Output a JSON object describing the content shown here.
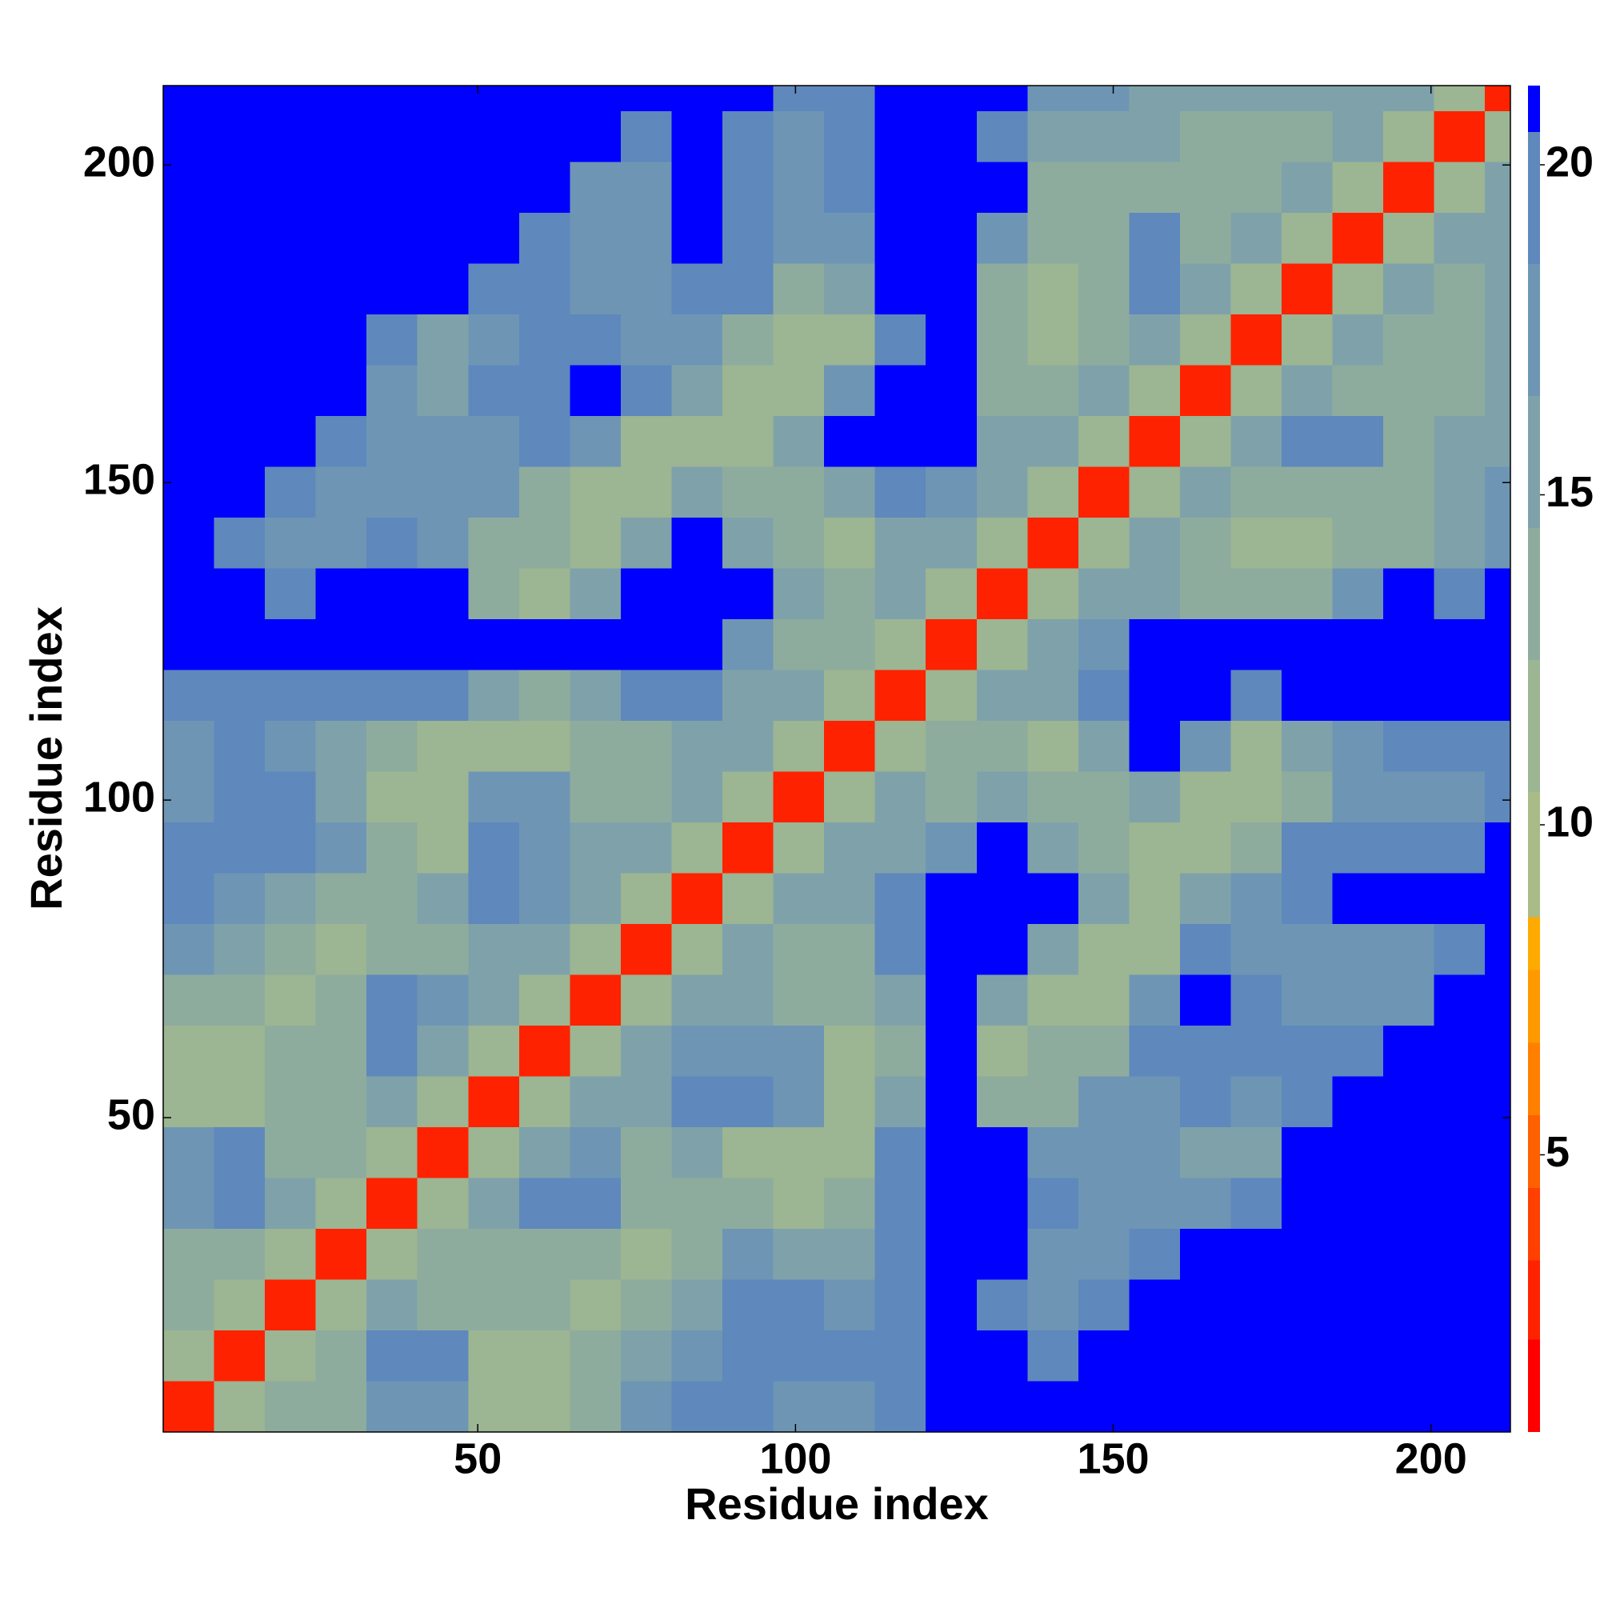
{
  "chart_data": {
    "type": "heatmap",
    "xlabel": "Residue index",
    "ylabel": "Residue index",
    "bins": [
      0.5,
      8.5,
      16.5,
      24.5,
      32.5,
      40.5,
      48.5,
      56.5,
      64.5,
      72.5,
      80.5,
      88.5,
      96.5,
      104.5,
      112.5,
      120.5,
      128.5,
      136.5,
      144.5,
      152.5,
      160.5,
      168.5,
      176.5,
      184.5,
      192.5,
      200.5,
      208.5,
      212.5
    ],
    "xlim": [
      0.5,
      212.5
    ],
    "ylim": [
      0.5,
      212.5
    ],
    "xticks": [
      50,
      100,
      150,
      200
    ],
    "yticks": [
      50,
      100,
      150,
      200
    ],
    "colorbar": {
      "bounds": [
        0.8,
        2.2,
        3.4,
        4.5,
        5.6,
        6.7,
        7.8,
        8.6,
        10.5,
        12.5,
        14.5,
        16.5,
        18.5,
        20.5,
        21.2
      ],
      "colors": [
        "#ff0000",
        "#ff2200",
        "#ff4000",
        "#ff6000",
        "#ff8000",
        "#ff9900",
        "#ffaa00",
        "#a9bb86",
        "#9cb592",
        "#8eac9e",
        "#7fa2aa",
        "#6e96b4",
        "#5f88bc",
        "#0000ff"
      ],
      "ticks": [
        5,
        10,
        15,
        20
      ]
    },
    "z": [
      [
        3,
        12,
        13,
        13,
        17,
        17,
        12,
        12,
        13,
        17,
        19,
        19,
        18,
        18,
        20,
        21,
        21,
        21,
        21,
        21,
        21,
        21,
        21,
        21,
        21,
        21,
        21
      ],
      [
        12,
        3,
        12,
        13,
        20,
        20,
        12,
        12,
        13,
        15,
        18,
        20,
        19,
        19,
        20,
        21,
        21,
        20,
        21,
        21,
        21,
        21,
        21,
        21,
        21,
        21,
        21
      ],
      [
        13,
        12,
        3,
        12,
        16,
        14,
        13,
        13,
        11,
        13,
        16,
        19,
        19,
        17,
        19,
        21,
        19,
        18,
        20,
        21,
        21,
        21,
        21,
        21,
        21,
        21,
        21
      ],
      [
        13,
        13,
        12,
        3,
        12,
        14,
        13,
        13,
        13,
        12,
        14,
        17,
        15,
        15,
        20,
        21,
        21,
        18,
        18,
        19,
        21,
        21,
        21,
        21,
        21,
        21,
        21
      ],
      [
        17,
        20,
        16,
        12,
        3,
        12,
        15,
        20,
        20,
        13,
        13,
        13,
        12,
        14,
        20,
        21,
        21,
        19,
        17,
        18,
        18,
        19,
        21,
        21,
        21,
        21,
        21
      ],
      [
        17,
        20,
        14,
        14,
        12,
        3,
        12,
        16,
        17,
        14,
        15,
        12,
        11,
        12,
        19,
        21,
        21,
        17,
        17,
        17,
        16,
        16,
        21,
        21,
        21,
        21,
        21
      ],
      [
        12,
        12,
        13,
        13,
        15,
        12,
        3,
        12,
        15,
        15,
        20,
        20,
        17,
        11,
        16,
        21,
        14,
        14,
        17,
        18,
        19,
        17,
        19,
        21,
        21,
        21,
        21
      ],
      [
        12,
        12,
        13,
        13,
        20,
        16,
        12,
        3,
        12,
        16,
        17,
        18,
        18,
        12,
        13,
        21,
        11,
        13,
        14,
        19,
        20,
        19,
        19,
        19,
        21,
        21,
        21
      ],
      [
        13,
        13,
        11,
        13,
        20,
        17,
        15,
        12,
        3,
        12,
        15,
        16,
        14,
        13,
        16,
        21,
        15,
        12,
        12,
        17,
        21,
        19,
        17,
        18,
        18,
        21,
        21
      ],
      [
        17,
        15,
        13,
        12,
        13,
        14,
        15,
        16,
        12,
        3,
        12,
        15,
        13,
        14,
        20,
        21,
        21,
        16,
        11,
        12,
        19,
        18,
        18,
        18,
        18,
        19,
        21
      ],
      [
        19,
        18,
        16,
        14,
        13,
        15,
        20,
        17,
        15,
        12,
        3,
        12,
        15,
        15,
        20,
        21,
        21,
        21,
        16,
        11,
        16,
        17,
        20,
        21,
        21,
        21,
        21
      ],
      [
        19,
        20,
        19,
        17,
        13,
        12,
        20,
        18,
        16,
        15,
        12,
        3,
        12,
        15,
        15,
        17,
        21,
        16,
        13,
        12,
        12,
        14,
        20,
        19,
        19,
        19,
        21
      ],
      [
        18,
        19,
        19,
        15,
        12,
        11,
        17,
        18,
        14,
        13,
        15,
        12,
        3,
        12,
        15,
        14,
        16,
        13,
        13,
        15,
        11,
        12,
        14,
        18,
        18,
        18,
        19
      ],
      [
        18,
        19,
        17,
        15,
        14,
        12,
        11,
        12,
        13,
        14,
        15,
        15,
        12,
        3,
        12,
        13,
        13,
        12,
        16,
        21,
        17,
        12,
        15,
        18,
        19,
        19,
        20
      ],
      [
        20,
        20,
        19,
        20,
        20,
        19,
        16,
        13,
        16,
        20,
        20,
        15,
        15,
        12,
        3,
        12,
        15,
        15,
        20,
        21,
        21,
        19,
        21,
        21,
        21,
        21,
        21
      ],
      [
        21,
        21,
        21,
        21,
        21,
        21,
        21,
        21,
        21,
        21,
        21,
        17,
        14,
        13,
        12,
        3,
        12,
        15,
        17,
        21,
        21,
        21,
        21,
        21,
        21,
        21,
        21
      ],
      [
        21,
        21,
        19,
        21,
        21,
        21,
        14,
        11,
        15,
        21,
        21,
        21,
        16,
        13,
        15,
        12,
        3,
        12,
        15,
        16,
        14,
        14,
        14,
        17,
        21,
        19,
        21
      ],
      [
        21,
        20,
        18,
        18,
        19,
        17,
        14,
        13,
        12,
        16,
        21,
        16,
        13,
        12,
        15,
        15,
        12,
        3,
        12,
        15,
        13,
        12,
        12,
        13,
        14,
        16,
        18
      ],
      [
        21,
        21,
        20,
        18,
        17,
        17,
        17,
        14,
        12,
        11,
        16,
        13,
        13,
        16,
        20,
        17,
        15,
        12,
        3,
        12,
        15,
        13,
        14,
        14,
        13,
        15,
        17
      ],
      [
        21,
        21,
        21,
        19,
        18,
        17,
        18,
        19,
        17,
        12,
        11,
        12,
        15,
        21,
        21,
        21,
        16,
        15,
        12,
        3,
        12,
        15,
        20,
        19,
        14,
        15,
        16
      ],
      [
        21,
        21,
        21,
        21,
        18,
        16,
        19,
        20,
        21,
        19,
        16,
        12,
        11,
        17,
        21,
        21,
        14,
        13,
        15,
        12,
        3,
        12,
        15,
        14,
        13,
        14,
        16
      ],
      [
        21,
        21,
        21,
        21,
        19,
        16,
        17,
        19,
        19,
        18,
        17,
        14,
        12,
        12,
        19,
        21,
        14,
        12,
        13,
        15,
        12,
        3,
        12,
        15,
        13,
        13,
        15
      ],
      [
        21,
        21,
        21,
        21,
        21,
        21,
        19,
        19,
        17,
        18,
        20,
        20,
        14,
        15,
        21,
        21,
        14,
        12,
        14,
        20,
        15,
        12,
        3,
        12,
        15,
        14,
        15
      ],
      [
        21,
        21,
        21,
        21,
        21,
        21,
        21,
        19,
        18,
        18,
        21,
        19,
        18,
        18,
        21,
        21,
        17,
        13,
        14,
        19,
        14,
        15,
        12,
        3,
        12,
        15,
        16
      ],
      [
        21,
        21,
        21,
        21,
        21,
        21,
        21,
        21,
        18,
        18,
        21,
        19,
        18,
        19,
        21,
        21,
        21,
        14,
        13,
        14,
        13,
        13,
        15,
        12,
        3,
        12,
        16
      ],
      [
        21,
        21,
        21,
        21,
        21,
        21,
        21,
        21,
        21,
        19,
        21,
        19,
        18,
        19,
        21,
        21,
        19,
        16,
        15,
        15,
        14,
        13,
        14,
        15,
        12,
        3,
        12
      ],
      [
        21,
        21,
        21,
        21,
        21,
        21,
        21,
        21,
        21,
        21,
        21,
        21,
        19,
        20,
        21,
        21,
        21,
        18,
        17,
        16,
        16,
        15,
        15,
        16,
        16,
        12,
        3
      ]
    ]
  }
}
